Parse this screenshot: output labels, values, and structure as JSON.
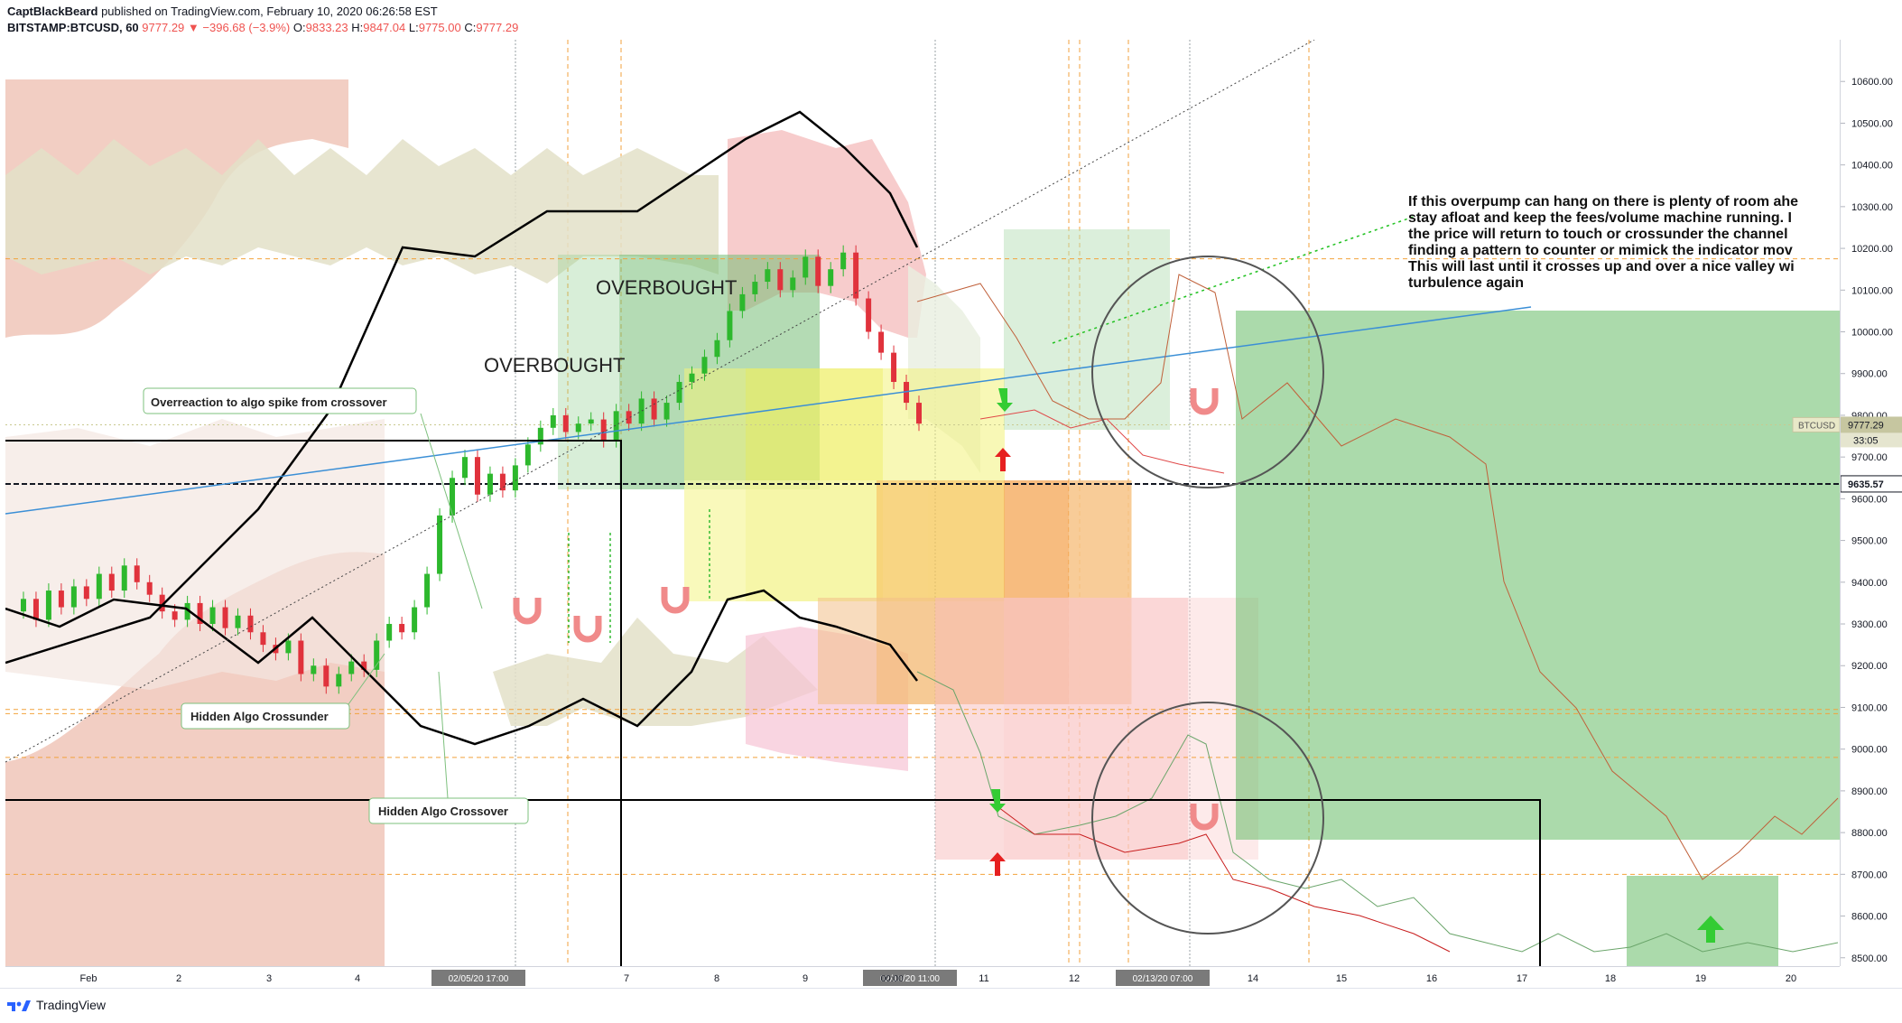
{
  "header": {
    "author": "CaptBlackBeard",
    "published_text": "published on TradingView.com, February 10, 2020 06:26:58 EST",
    "symbol": "BITSTAMP:BTCUSD, 60",
    "last": "9777.29",
    "change": "−396.68 (−3.9%)",
    "open_label": "O:",
    "open": "9833.23",
    "high_label": "H:",
    "high": "9847.04",
    "low_label": "L:",
    "low": "9775.00",
    "close_label": "C:",
    "close": "9777.29"
  },
  "footer": {
    "brand": "TradingView"
  },
  "colors": {
    "up": "#26a69a",
    "down": "#ef5350",
    "candle_up": "#2db82d",
    "candle_down": "#e0323c",
    "band_fill": "#d9c9a8",
    "band_red": "#f4b8b8",
    "price_tag": "#c3c3a0"
  },
  "chart_data": {
    "type": "line",
    "symbol": "BTCUSD",
    "timeframe": "60",
    "ylim": [
      8480,
      10700
    ],
    "y_ticks": [
      "10600.00",
      "10500.00",
      "10400.00",
      "10300.00",
      "10200.00",
      "10100.00",
      "10000.00",
      "9900.00",
      "9800.00",
      "9700.00",
      "9600.00",
      "9500.00",
      "9400.00",
      "9300.00",
      "9200.00",
      "9100.00",
      "9000.00",
      "8900.00",
      "8800.00",
      "8700.00",
      "8600.00",
      "8500.00"
    ],
    "x_labels": [
      "Feb",
      "2",
      "3",
      "4",
      "5",
      "6",
      "7",
      "8",
      "9",
      "10",
      "11",
      "12",
      "13",
      "14",
      "15",
      "16",
      "17",
      "18",
      "19",
      "20"
    ],
    "x_highlight_labels": [
      "02/05/20",
      "17:00",
      "02/10/20",
      "11:00",
      "02/13/20",
      "07:00",
      "00:00"
    ],
    "current_price": "9777.29",
    "countdown": "33:05",
    "hline_value": "9635.57",
    "symbol_tag": "BTCUSD",
    "annotations": {
      "overbought_1": "OVERBOUGHT",
      "overbought_2": "OVERBOUGHT",
      "callout_1": "Overreaction to algo spike from crossover",
      "callout_2": "Hidden Algo Crossunder",
      "callout_3": "Hidden Algo Crossover",
      "note_lines": [
        "If this overpump can hang on there is plenty of room ahe",
        "stay afloat and keep the fees/volume machine running.  I",
        "the price will return to touch or crossunder the channel",
        "finding a pattern to counter or mimick the indicator mov",
        "This will last until it crosses up and over a nice valley wi",
        "turbulence again"
      ]
    },
    "series": [
      {
        "values": [
          9330,
          9360,
          9310,
          9380,
          9340,
          9390,
          9360,
          9420,
          9380,
          9440,
          9400,
          9370,
          9330,
          9310,
          9350,
          9300,
          9340,
          9290,
          9320,
          9280,
          9250,
          9230,
          9260,
          9180,
          9200,
          9150,
          9180,
          9210,
          9190,
          9260,
          9300,
          9280,
          9340,
          9420,
          9560,
          9650,
          9700,
          9610,
          9660,
          9620,
          9680,
          9730,
          9770,
          9800,
          9760,
          9780,
          9790,
          9740,
          9810,
          9780,
          9840,
          9790,
          9830,
          9880,
          9900,
          9940,
          9980,
          10050,
          10090,
          10120,
          10150,
          10100,
          10130,
          10180,
          10110,
          10150,
          10190,
          10080,
          10000,
          9950,
          9880,
          9830,
          9780
        ]
      }
    ]
  }
}
